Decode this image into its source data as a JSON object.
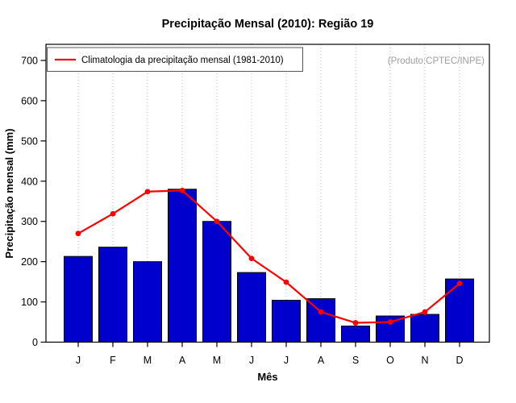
{
  "title": "Precipitação Mensal (2010): Região 19",
  "legend": {
    "label": "Climatologia da precipitação mensal (1981-2010)"
  },
  "watermark": "(Produto:CPTEC/INPE)",
  "colors": {
    "bar_fill": "#0000CD",
    "bar_border": "#000000",
    "line": "#FF0000",
    "grid": "#BBBBBB",
    "watermark": "#9E9E9E",
    "box": "#000000",
    "legend_border": "#555555"
  },
  "chart_data": {
    "type": "bar",
    "title": "Precipitação Mensal (2010): Região 19",
    "xlabel": "Mês",
    "ylabel": "Precipitação mensal (mm)",
    "categories": [
      "J",
      "F",
      "M",
      "A",
      "M",
      "J",
      "J",
      "A",
      "S",
      "O",
      "N",
      "D"
    ],
    "series": [
      {
        "name": "Precipitação mensal 2010",
        "type": "bar",
        "values": [
          213,
          236,
          200,
          380,
          300,
          173,
          104,
          108,
          40,
          65,
          69,
          157
        ]
      },
      {
        "name": "Climatologia da precipitação mensal (1981-2010)",
        "type": "line",
        "values": [
          270,
          319,
          374,
          377,
          300,
          208,
          149,
          75,
          48,
          50,
          75,
          146
        ]
      }
    ],
    "ylim": [
      0,
      700
    ],
    "yticks": [
      0,
      100,
      200,
      300,
      400,
      500,
      600,
      700
    ],
    "grid": "vertical-dotted",
    "legend_position": "top-left",
    "annotation": "(Produto:CPTEC/INPE)"
  }
}
